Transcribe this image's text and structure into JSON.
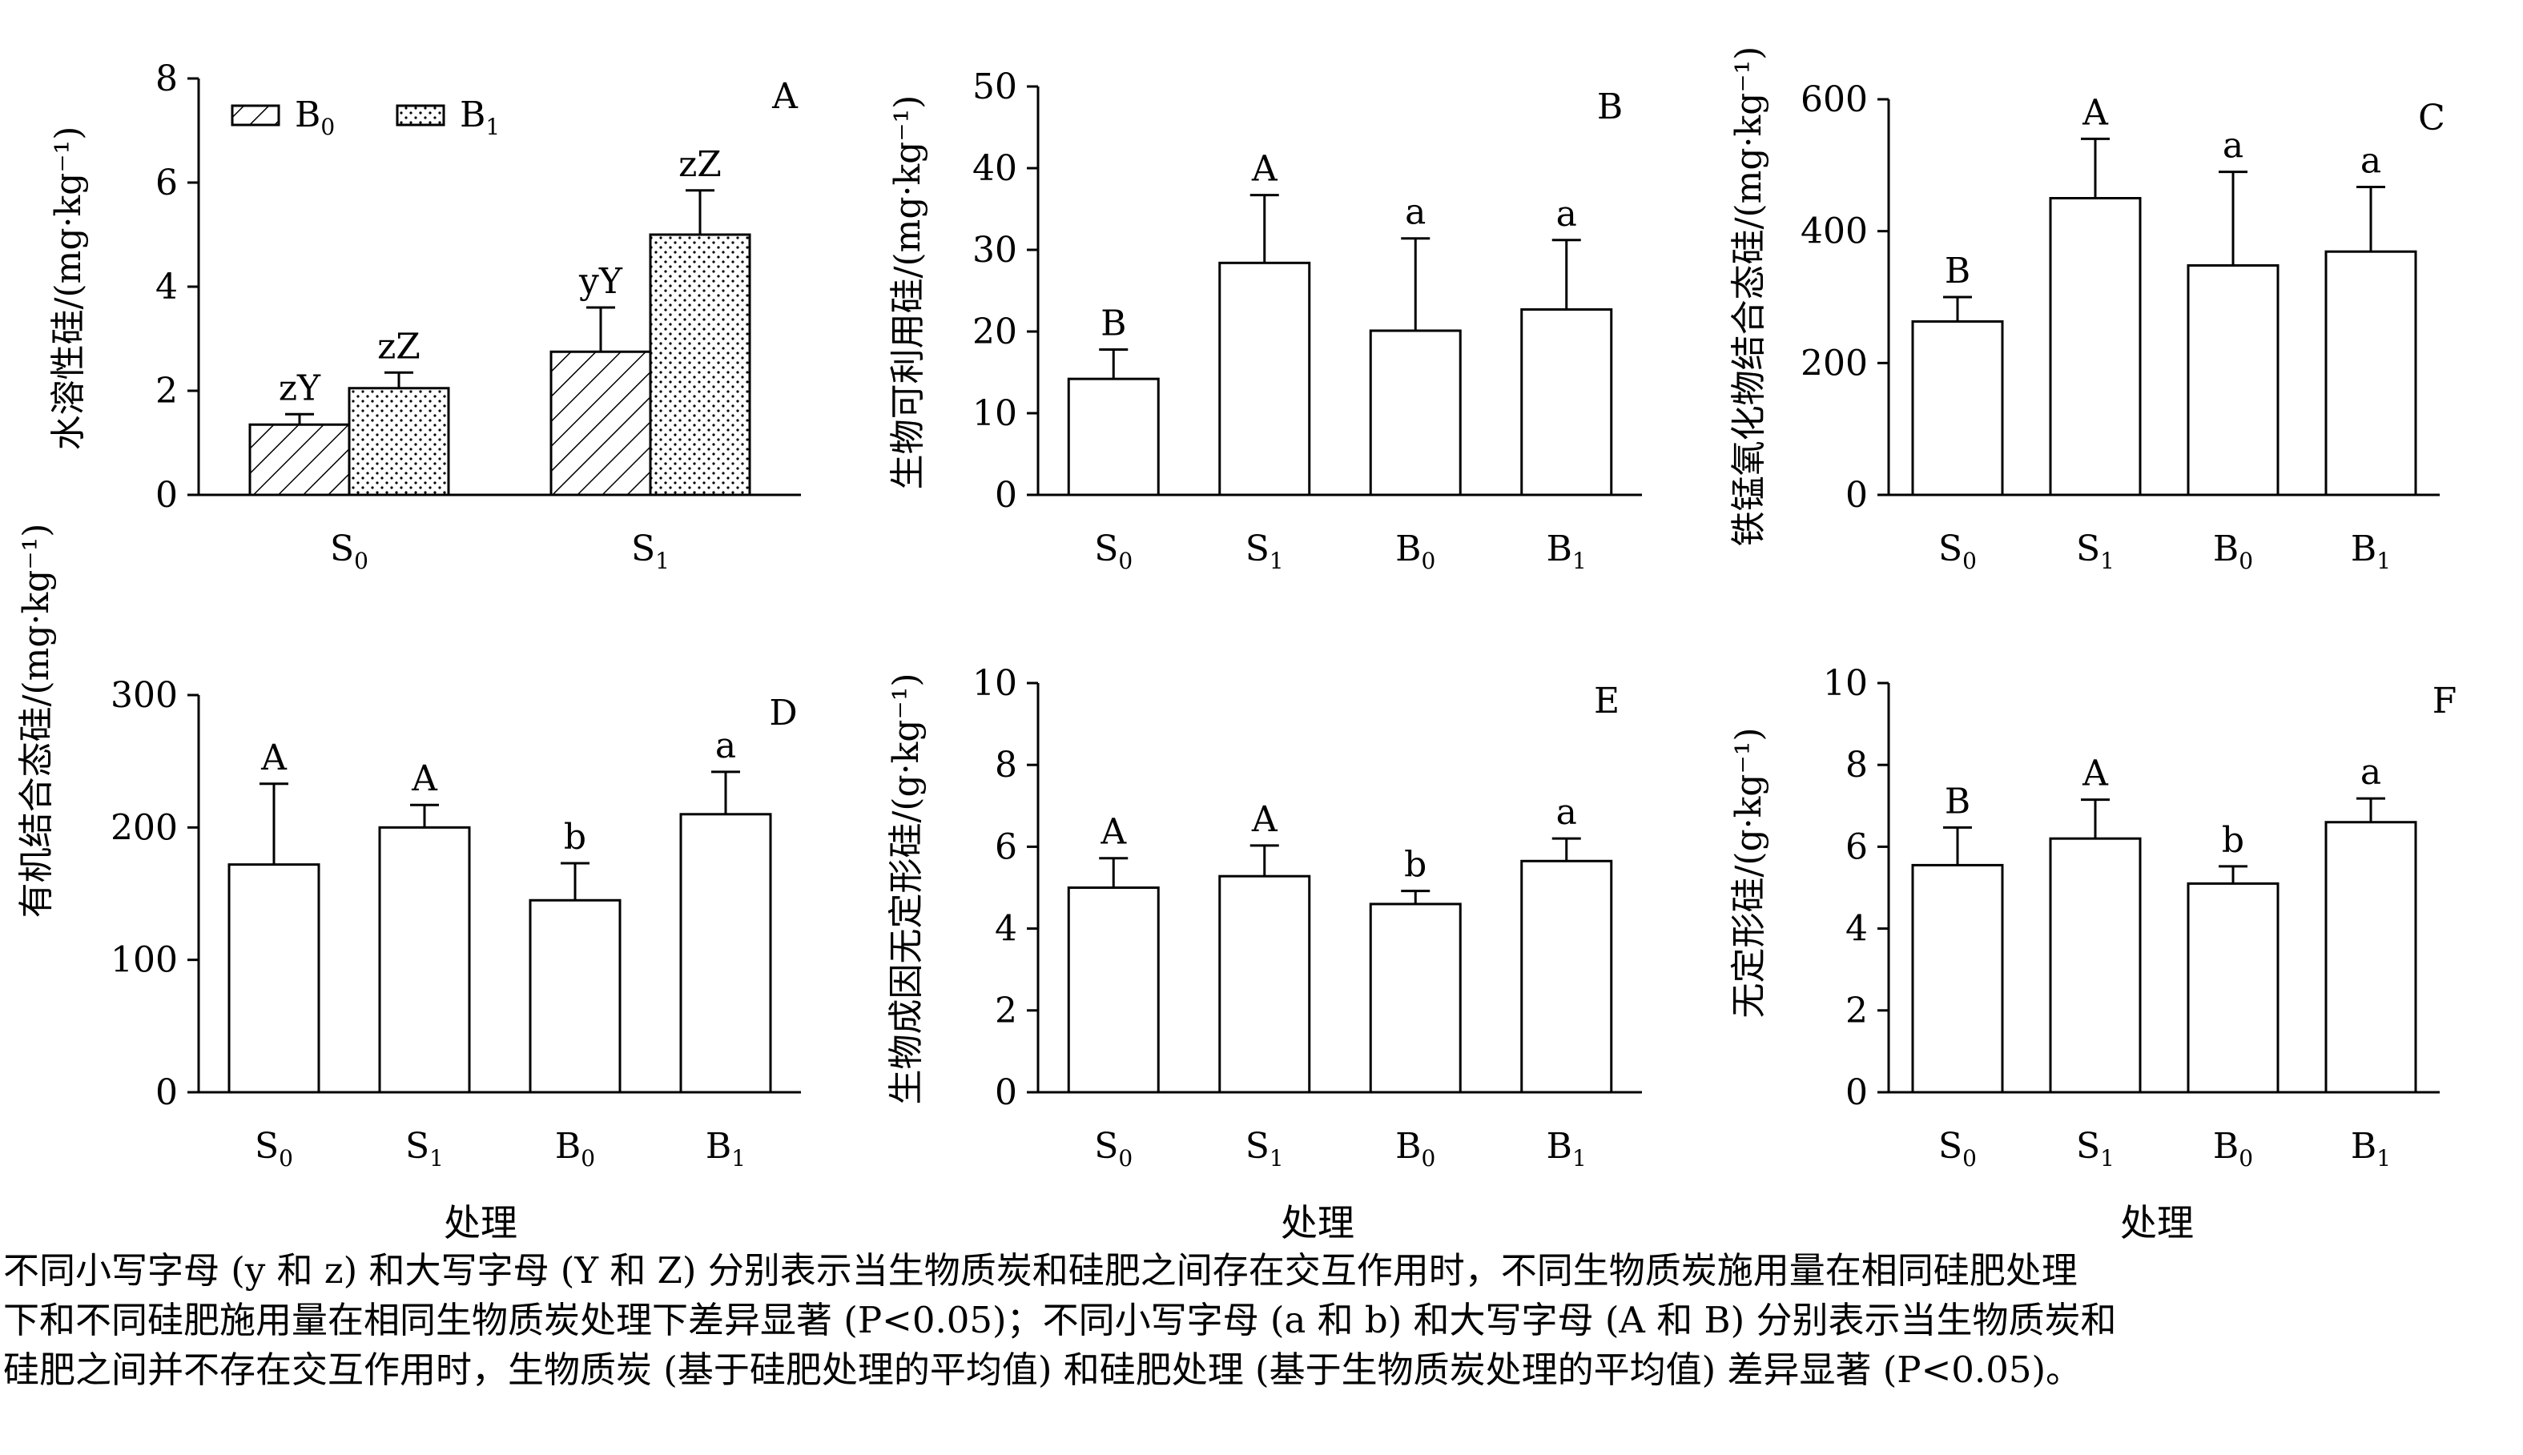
{
  "chart_data": [
    {
      "panel": "A",
      "type": "bar",
      "ylabel": "水溶性硅/(mg·kg⁻¹)",
      "xlabel": "",
      "ylim": [
        0,
        8
      ],
      "yticks": [
        0,
        2,
        4,
        6,
        8
      ],
      "categories": [
        "S₀",
        "S₁"
      ],
      "legend_position": "top-left",
      "series": [
        {
          "name": "B₀",
          "pattern": "diagonal-hatch",
          "values": [
            1.35,
            2.75
          ],
          "errors": [
            0.2,
            0.85
          ],
          "labels": [
            "zY",
            "yY"
          ]
        },
        {
          "name": "B₁",
          "pattern": "dotted",
          "values": [
            2.05,
            5.0
          ],
          "errors": [
            0.3,
            0.85
          ],
          "labels": [
            "zZ",
            "zZ"
          ]
        }
      ]
    },
    {
      "panel": "B",
      "type": "bar",
      "ylabel": "生物可利用硅/(mg·kg⁻¹)",
      "xlabel": "",
      "ylim": [
        0,
        50
      ],
      "yticks": [
        0,
        10,
        20,
        30,
        40,
        50
      ],
      "categories": [
        "S₀",
        "S₁",
        "B₀",
        "B₁"
      ],
      "values": [
        14.2,
        28.4,
        20.1,
        22.7
      ],
      "errors": [
        3.6,
        8.3,
        11.3,
        8.5
      ],
      "labels": [
        "B",
        "A",
        "a",
        "a"
      ]
    },
    {
      "panel": "C",
      "type": "bar",
      "ylabel": "铁锰氧化物结合态硅/(mg·kg⁻¹)",
      "xlabel": "",
      "ylim": [
        0,
        600
      ],
      "yticks": [
        0,
        200,
        400,
        600
      ],
      "categories": [
        "S₀",
        "S₁",
        "B₀",
        "B₁"
      ],
      "values": [
        263,
        450,
        348,
        369
      ],
      "errors": [
        37,
        90,
        142,
        98
      ],
      "labels": [
        "B",
        "A",
        "a",
        "a"
      ]
    },
    {
      "panel": "D",
      "type": "bar",
      "ylabel": "有机结合态硅/(mg·kg⁻¹)",
      "xlabel": "处理",
      "ylim": [
        0,
        300
      ],
      "yticks": [
        0,
        100,
        200,
        300
      ],
      "categories": [
        "S₀",
        "S₁",
        "B₀",
        "B₁"
      ],
      "values": [
        172,
        200,
        145,
        210
      ],
      "errors": [
        61,
        17,
        28,
        32
      ],
      "labels": [
        "A",
        "A",
        "b",
        "a"
      ]
    },
    {
      "panel": "E",
      "type": "bar",
      "ylabel": "生物成因无定形硅/(g·kg⁻¹)",
      "xlabel": "处理",
      "ylim": [
        0,
        10
      ],
      "yticks": [
        0,
        2,
        4,
        6,
        8,
        10
      ],
      "categories": [
        "S₀",
        "S₁",
        "B₀",
        "B₁"
      ],
      "values": [
        5.0,
        5.28,
        4.6,
        5.65
      ],
      "errors": [
        0.72,
        0.75,
        0.32,
        0.55
      ],
      "labels": [
        "A",
        "A",
        "b",
        "a"
      ]
    },
    {
      "panel": "F",
      "type": "bar",
      "ylabel": "无定形硅/(g·kg⁻¹)",
      "xlabel": "处理",
      "ylim": [
        0,
        10
      ],
      "yticks": [
        0,
        2,
        4,
        6,
        8,
        10
      ],
      "categories": [
        "S₀",
        "S₁",
        "B₀",
        "B₁"
      ],
      "values": [
        5.55,
        6.2,
        5.1,
        6.6
      ],
      "errors": [
        0.92,
        0.95,
        0.42,
        0.58
      ],
      "labels": [
        "B",
        "A",
        "b",
        "a"
      ]
    }
  ],
  "caption": {
    "line1": "不同小写字母 (y 和 z) 和大写字母 (Y 和 Z) 分别表示当生物质炭和硅肥之间存在交互作用时，不同生物质炭施用量在相同硅肥处理",
    "line2": "下和不同硅肥施用量在相同生物质炭处理下差异显著 (P<0.05)；不同小写字母 (a 和 b) 和大写字母 (A 和 B) 分别表示当生物质炭和",
    "line3": "硅肥之间并不存在交互作用时，生物质炭 (基于硅肥处理的平均值) 和硅肥处理 (基于生物质炭处理的平均值) 差异显著 (P<0.05)。"
  }
}
